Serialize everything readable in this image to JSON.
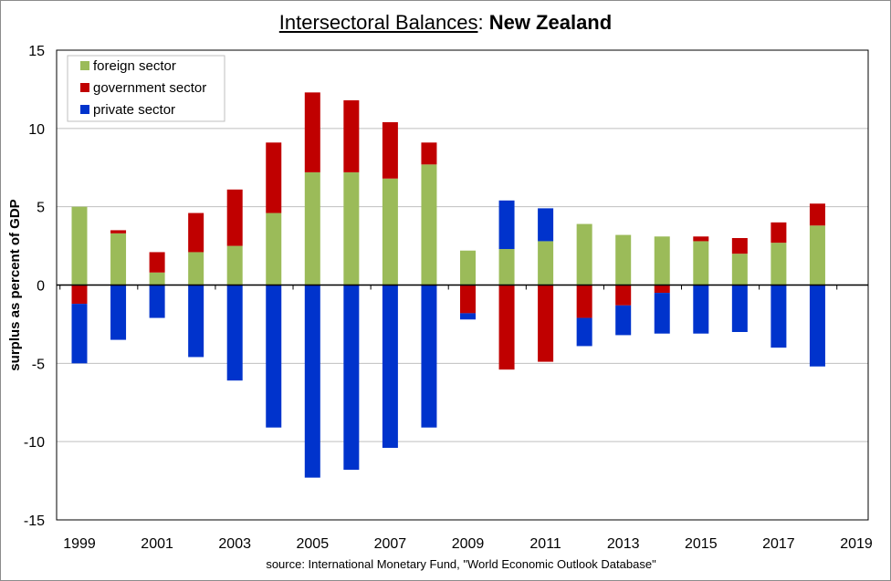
{
  "chart_data": {
    "type": "bar",
    "stacked": true,
    "title_part1": "Intersectoral Balances",
    "title_sep": ": ",
    "title_part2": "New Zealand",
    "ylabel": "surplus as percent of GDP",
    "xlabel": "",
    "source": "source:  International Monetary Fund, \"World Economic Outlook Database\"",
    "ylim": [
      -15,
      15
    ],
    "yticks": [
      -15,
      -10,
      -5,
      0,
      5,
      10,
      15
    ],
    "xticks": [
      1999,
      2001,
      2003,
      2005,
      2007,
      2009,
      2011,
      2013,
      2015,
      2017,
      2019
    ],
    "xlim": [
      1999,
      2019
    ],
    "grid": true,
    "legend_position": "top-left",
    "categories": [
      1999,
      2000,
      2001,
      2002,
      2003,
      2004,
      2005,
      2006,
      2007,
      2008,
      2009,
      2010,
      2011,
      2012,
      2013,
      2014,
      2015,
      2016,
      2017,
      2018
    ],
    "series": [
      {
        "name": "foreign sector",
        "color": "#9bbb59",
        "values": [
          5.0,
          3.3,
          0.8,
          2.1,
          2.5,
          4.6,
          7.2,
          7.2,
          6.8,
          7.7,
          2.2,
          2.3,
          2.8,
          3.9,
          3.2,
          3.1,
          2.8,
          2.0,
          2.7,
          3.8
        ]
      },
      {
        "name": "government sector",
        "color": "#c00000",
        "values": [
          -1.2,
          0.2,
          1.3,
          2.5,
          3.6,
          4.5,
          5.1,
          4.6,
          3.6,
          1.4,
          -1.8,
          -5.4,
          -4.9,
          -2.1,
          -1.3,
          -0.5,
          0.3,
          1.0,
          1.3,
          1.4
        ]
      },
      {
        "name": "private sector",
        "color": "#0033cc",
        "values": [
          -3.8,
          -3.5,
          -2.1,
          -4.6,
          -6.1,
          -9.1,
          -12.3,
          -11.8,
          -10.4,
          -9.1,
          -0.4,
          3.1,
          2.1,
          -1.8,
          -1.9,
          -2.6,
          -3.1,
          -3.0,
          -4.0,
          -5.2
        ]
      }
    ]
  }
}
